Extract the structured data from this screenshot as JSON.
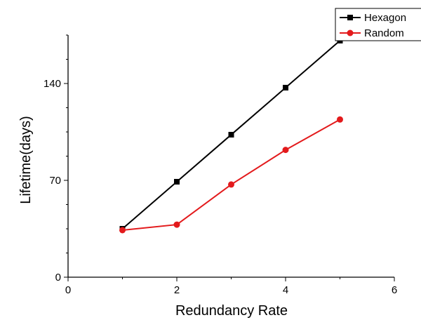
{
  "chart_data": {
    "type": "line",
    "title": "",
    "xlabel": "Redundancy Rate",
    "ylabel": "Lifetime(days)",
    "xlim": [
      0,
      6
    ],
    "ylim": [
      0,
      175
    ],
    "xticks": [
      0,
      2,
      4,
      6
    ],
    "yticks": [
      0,
      70,
      140
    ],
    "x": [
      1,
      2,
      3,
      4,
      5
    ],
    "series": [
      {
        "name": "Hexagon",
        "values": [
          35,
          69,
          103,
          137,
          171
        ],
        "color": "#000000",
        "marker": "square"
      },
      {
        "name": "Random",
        "values": [
          34,
          38,
          67,
          92,
          114
        ],
        "color": "#e31a1c",
        "marker": "circle"
      }
    ],
    "legend_position": "top-right",
    "grid": false
  }
}
